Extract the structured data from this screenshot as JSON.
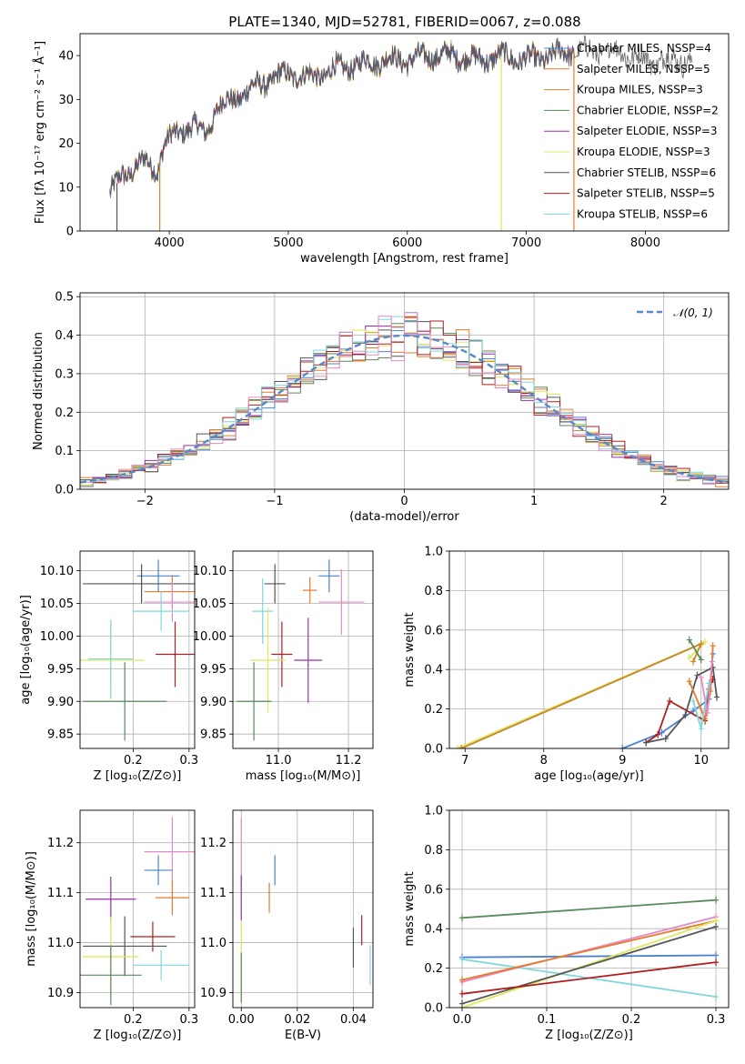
{
  "figure_title": "PLATE=1340, MJD=52781, FIBERID=0067, z=0.088",
  "colors": {
    "chabrier_miles": "#4c82d0",
    "salpeter_miles": "#e87a2d",
    "kroupa_miles": "#c8862c",
    "chabrier_elodie": "#5a8a5e",
    "salpeter_elodie": "#9b2fae",
    "kroupa_elodie": "#dde85a",
    "chabrier_stelib": "#555555",
    "salpeter_stelib": "#b01f1f",
    "kroupa_stelib": "#7fd7dc",
    "pink": "#e58ac5",
    "normal": "#5588cc"
  },
  "chart_data": [
    {
      "id": "spectrum",
      "type": "line",
      "xlabel": "wavelength [Angstrom, rest frame]",
      "ylabel": "Flux [fλ 10⁻¹⁷ erg cm⁻² s⁻¹ Å⁻¹]",
      "xlim": [
        3250,
        8700
      ],
      "ylim": [
        0,
        45
      ],
      "xticks": [
        "4000",
        "5000",
        "6000",
        "7000",
        "8000"
      ],
      "yticks": [
        "0",
        "10",
        "20",
        "30",
        "40"
      ],
      "legend_position": "top-right",
      "legend": [
        "Chabrier MILES, NSSP=4",
        "Salpeter MILES, NSSP=5",
        "Kroupa MILES, NSSP=3",
        "Chabrier ELODIE, NSSP=2",
        "Salpeter ELODIE, NSSP=3",
        "Kroupa ELODIE, NSSP=3",
        "Chabrier STELIB, NSSP=6",
        "Salpeter STELIB, NSSP=5",
        "Kroupa STELIB, NSSP=6"
      ],
      "continuum": [
        [
          3500,
          8
        ],
        [
          3600,
          13
        ],
        [
          3700,
          14
        ],
        [
          3800,
          16
        ],
        [
          3900,
          14
        ],
        [
          3950,
          19
        ],
        [
          4000,
          21
        ],
        [
          4100,
          23
        ],
        [
          4200,
          24
        ],
        [
          4300,
          22
        ],
        [
          4400,
          28
        ],
        [
          4600,
          31
        ],
        [
          4800,
          34
        ],
        [
          5000,
          36
        ],
        [
          5200,
          35
        ],
        [
          5400,
          37
        ],
        [
          5600,
          38
        ],
        [
          5800,
          39
        ],
        [
          6000,
          39
        ],
        [
          6200,
          40
        ],
        [
          6400,
          40
        ],
        [
          6600,
          39
        ],
        [
          6800,
          40
        ],
        [
          7000,
          39
        ],
        [
          7200,
          40
        ],
        [
          7400,
          41
        ],
        [
          7600,
          41
        ],
        [
          7800,
          41
        ],
        [
          8000,
          39
        ],
        [
          8200,
          39
        ],
        [
          8400,
          39
        ]
      ]
    },
    {
      "id": "residuals",
      "type": "histogram",
      "xlabel": "(data-model)/error",
      "ylabel": "Normed distribution",
      "xlim": [
        -2.5,
        2.5
      ],
      "ylim": [
        0,
        0.51
      ],
      "xticks": [
        "−2",
        "−1",
        "0",
        "1",
        "2"
      ],
      "yticks": [
        "0.0",
        "0.1",
        "0.2",
        "0.3",
        "0.4",
        "0.5"
      ],
      "legend_position": "top-right",
      "normal_label": "𝒩(0, 1)",
      "bin_width": 0.1,
      "grid": true
    },
    {
      "id": "z_age",
      "type": "errorbar",
      "xlabel": "Z [log₁₀(Z/Z⊙)]",
      "ylabel": "age  [log₁₀(age/yr)]",
      "xlim": [
        0.105,
        0.31
      ],
      "ylim": [
        9.828,
        10.13
      ],
      "xticks": [
        "0.2",
        "0.3"
      ],
      "yticks": [
        "9.85",
        "9.90",
        "9.95",
        "10.00",
        "10.05",
        "10.10"
      ],
      "points": [
        {
          "series": "chabrier_miles",
          "x": 0.245,
          "y": 10.092,
          "xerr": 0.038,
          "yerr": 0.025
        },
        {
          "series": "salpeter_miles",
          "x": 0.27,
          "y": 10.068,
          "xerr": 0.05,
          "yerr": 0.025
        },
        {
          "series": "chabrier_stelib",
          "x": 0.215,
          "y": 10.08,
          "xerr": 0.105,
          "yerr": 0.03
        },
        {
          "series": "pink",
          "x": 0.27,
          "y": 10.052,
          "xerr": 0.05,
          "yerr": 0.03
        },
        {
          "series": "kroupa_stelib",
          "x": 0.25,
          "y": 10.038,
          "xerr": 0.05,
          "yerr": 0.03
        },
        {
          "series": "salpeter_stelib",
          "x": 0.275,
          "y": 9.972,
          "xerr": 0.035,
          "yerr": 0.05
        },
        {
          "series": "kroupa_elodie",
          "x": 0.16,
          "y": 9.963,
          "xerr": 0.06,
          "yerr": 0.06
        },
        {
          "series": "kroupa_stelib",
          "x": 0.16,
          "y": 9.965,
          "xerr": 0.04,
          "yerr": 0.06
        },
        {
          "series": "chabrier_elodie",
          "x": 0.185,
          "y": 9.9,
          "xerr": 0.075,
          "yerr": 0.06
        }
      ]
    },
    {
      "id": "mass_age",
      "type": "errorbar",
      "xlabel": "mass [log₁₀(M/M⊙)]",
      "ylabel": "",
      "xlim": [
        10.87,
        11.27
      ],
      "ylim": [
        9.828,
        10.13
      ],
      "xticks": [
        "11.0",
        "11.2"
      ],
      "yticks": [
        "9.85",
        "9.90",
        "9.95",
        "10.00",
        "10.05",
        "10.10"
      ],
      "points": [
        {
          "series": "chabrier_miles",
          "x": 11.145,
          "y": 10.092,
          "xerr": 0.03,
          "yerr": 0.025
        },
        {
          "series": "salpeter_miles",
          "x": 11.09,
          "y": 10.07,
          "xerr": 0.02,
          "yerr": 0.02
        },
        {
          "series": "chabrier_stelib",
          "x": 10.99,
          "y": 10.08,
          "xerr": 0.03,
          "yerr": 0.03
        },
        {
          "series": "pink",
          "x": 11.18,
          "y": 10.052,
          "xerr": 0.065,
          "yerr": 0.05
        },
        {
          "series": "kroupa_stelib",
          "x": 10.955,
          "y": 10.038,
          "xerr": 0.03,
          "yerr": 0.05
        },
        {
          "series": "salpeter_stelib",
          "x": 11.01,
          "y": 9.972,
          "xerr": 0.03,
          "yerr": 0.05
        },
        {
          "series": "salpeter_elodie",
          "x": 11.085,
          "y": 9.963,
          "xerr": 0.04,
          "yerr": 0.065
        },
        {
          "series": "kroupa_elodie",
          "x": 10.97,
          "y": 9.963,
          "xerr": 0.05,
          "yerr": 0.08
        },
        {
          "series": "chabrier_elodie",
          "x": 10.93,
          "y": 9.9,
          "xerr": 0.05,
          "yerr": 0.06
        }
      ]
    },
    {
      "id": "age_weight",
      "type": "line",
      "xlabel": "age  [log₁₀(age/yr)]",
      "ylabel": "mass weight",
      "xlim": [
        6.8,
        10.35
      ],
      "ylim": [
        0,
        1
      ],
      "xticks": [
        "7",
        "8",
        "9",
        "10"
      ],
      "yticks": [
        "0.0",
        "0.2",
        "0.4",
        "0.6",
        "0.8",
        "1.0"
      ],
      "grid": true,
      "series": [
        {
          "name": "kroupa_elodie",
          "x": [
            6.9,
            10.05,
            9.85
          ],
          "y": [
            0.0,
            0.54,
            0.46
          ]
        },
        {
          "name": "kroupa_miles",
          "x": [
            6.95,
            10.0,
            9.9
          ],
          "y": [
            0.0,
            0.53,
            0.44
          ]
        },
        {
          "name": "chabrier_miles",
          "x": [
            9.0,
            9.5,
            9.9,
            10.1,
            10.15
          ],
          "y": [
            0.0,
            0.08,
            0.19,
            0.25,
            0.48
          ]
        },
        {
          "name": "salpeter_stelib",
          "x": [
            9.3,
            9.45,
            9.6,
            10.05,
            10.1,
            10.15
          ],
          "y": [
            0.03,
            0.07,
            0.24,
            0.14,
            0.3,
            0.35
          ]
        },
        {
          "name": "chabrier_stelib",
          "x": [
            9.3,
            9.55,
            9.8,
            9.95,
            10.15,
            10.2
          ],
          "y": [
            0.03,
            0.05,
            0.17,
            0.37,
            0.41,
            0.26
          ]
        },
        {
          "name": "salpeter_miles",
          "x": [
            9.85,
            10.05,
            10.12,
            10.15
          ],
          "y": [
            0.34,
            0.15,
            0.29,
            0.52
          ]
        },
        {
          "name": "pink",
          "x": [
            10.0,
            10.08,
            10.14
          ],
          "y": [
            0.36,
            0.18,
            0.44
          ]
        },
        {
          "name": "kroupa_stelib",
          "x": [
            9.9,
            10.0,
            10.1
          ],
          "y": [
            0.24,
            0.1,
            0.33
          ]
        },
        {
          "name": "chabrier_elodie",
          "x": [
            9.85,
            10.0
          ],
          "y": [
            0.55,
            0.45
          ]
        }
      ]
    },
    {
      "id": "z_mass",
      "type": "errorbar",
      "xlabel": "Z [log₁₀(Z/Z⊙)]",
      "ylabel": "mass [log₁₀(M/M⊙)]",
      "xlim": [
        0.105,
        0.31
      ],
      "ylim": [
        10.87,
        11.265
      ],
      "xticks": [
        "0.2",
        "0.3"
      ],
      "yticks": [
        "10.9",
        "11.0",
        "11.1",
        "11.2"
      ],
      "points": [
        {
          "series": "pink",
          "x": 0.27,
          "y": 11.182,
          "xerr": 0.05,
          "yerr": 0.07
        },
        {
          "series": "chabrier_miles",
          "x": 0.245,
          "y": 11.145,
          "xerr": 0.025,
          "yerr": 0.03
        },
        {
          "series": "salpeter_miles",
          "x": 0.27,
          "y": 11.09,
          "xerr": 0.03,
          "yerr": 0.035
        },
        {
          "series": "salpeter_elodie",
          "x": 0.16,
          "y": 11.087,
          "xerr": 0.045,
          "yerr": 0.045
        },
        {
          "series": "salpeter_stelib",
          "x": 0.235,
          "y": 11.012,
          "xerr": 0.04,
          "yerr": 0.03
        },
        {
          "series": "chabrier_stelib",
          "x": 0.185,
          "y": 10.993,
          "xerr": 0.075,
          "yerr": 0.06
        },
        {
          "series": "kroupa_elodie",
          "x": 0.16,
          "y": 10.972,
          "xerr": 0.05,
          "yerr": 0.08
        },
        {
          "series": "kroupa_stelib",
          "x": 0.25,
          "y": 10.955,
          "xerr": 0.05,
          "yerr": 0.03
        },
        {
          "series": "chabrier_elodie",
          "x": 0.16,
          "y": 10.935,
          "xerr": 0.055,
          "yerr": 0.06
        }
      ]
    },
    {
      "id": "ebv_mass",
      "type": "errorbar",
      "xlabel": "E(B-V)",
      "ylabel": "",
      "xlim": [
        -0.003,
        0.047
      ],
      "ylim": [
        10.87,
        11.265
      ],
      "xticks": [
        "0.00",
        "0.02",
        "0.04"
      ],
      "yticks": [
        "10.9",
        "11.0",
        "11.1",
        "11.2"
      ],
      "points": [
        {
          "series": "pink",
          "x": 0.0,
          "y": 11.18,
          "xerr": 0,
          "yerr": 0.07
        },
        {
          "series": "chabrier_miles",
          "x": 0.012,
          "y": 11.145,
          "xerr": 0,
          "yerr": 0.03
        },
        {
          "series": "salpeter_miles",
          "x": 0.01,
          "y": 11.09,
          "xerr": 0,
          "yerr": 0.03
        },
        {
          "series": "salpeter_elodie",
          "x": 0.0,
          "y": 11.09,
          "xerr": 0,
          "yerr": 0.045
        },
        {
          "series": "salpeter_stelib",
          "x": 0.043,
          "y": 11.025,
          "xerr": 0,
          "yerr": 0.03
        },
        {
          "series": "chabrier_stelib",
          "x": 0.04,
          "y": 10.99,
          "xerr": 0,
          "yerr": 0.04
        },
        {
          "series": "kroupa_elodie",
          "x": 0.0,
          "y": 10.96,
          "xerr": 0,
          "yerr": 0.08
        },
        {
          "series": "kroupa_stelib",
          "x": 0.046,
          "y": 10.955,
          "xerr": 0,
          "yerr": 0.04
        },
        {
          "series": "chabrier_elodie",
          "x": 0.0,
          "y": 10.93,
          "xerr": 0,
          "yerr": 0.05
        }
      ]
    },
    {
      "id": "z_weight",
      "type": "line",
      "xlabel": "Z [log₁₀(Z/Z⊙)]",
      "ylabel": "mass weight",
      "xlim": [
        -0.015,
        0.315
      ],
      "ylim": [
        0,
        1
      ],
      "xticks": [
        "0.0",
        "0.1",
        "0.2",
        "0.3"
      ],
      "yticks": [
        "0.0",
        "0.2",
        "0.4",
        "0.6",
        "0.8",
        "1.0"
      ],
      "grid": true,
      "series": [
        {
          "name": "chabrier_elodie",
          "x": [
            0.0,
            0.3
          ],
          "y": [
            0.455,
            0.545
          ]
        },
        {
          "name": "chabrier_miles",
          "x": [
            0.0,
            0.3
          ],
          "y": [
            0.255,
            0.265
          ]
        },
        {
          "name": "kroupa_stelib",
          "x": [
            0.0,
            0.3
          ],
          "y": [
            0.245,
            0.055
          ]
        },
        {
          "name": "pink",
          "x": [
            0.0,
            0.3
          ],
          "y": [
            0.13,
            0.46
          ]
        },
        {
          "name": "salpeter_miles",
          "x": [
            0.0,
            0.3
          ],
          "y": [
            0.14,
            0.44
          ]
        },
        {
          "name": "kroupa_elodie",
          "x": [
            0.0,
            0.3
          ],
          "y": [
            0.0,
            0.44
          ]
        },
        {
          "name": "chabrier_stelib",
          "x": [
            0.0,
            0.3
          ],
          "y": [
            0.02,
            0.41
          ]
        },
        {
          "name": "salpeter_stelib",
          "x": [
            0.0,
            0.3
          ],
          "y": [
            0.07,
            0.23
          ]
        }
      ]
    }
  ]
}
